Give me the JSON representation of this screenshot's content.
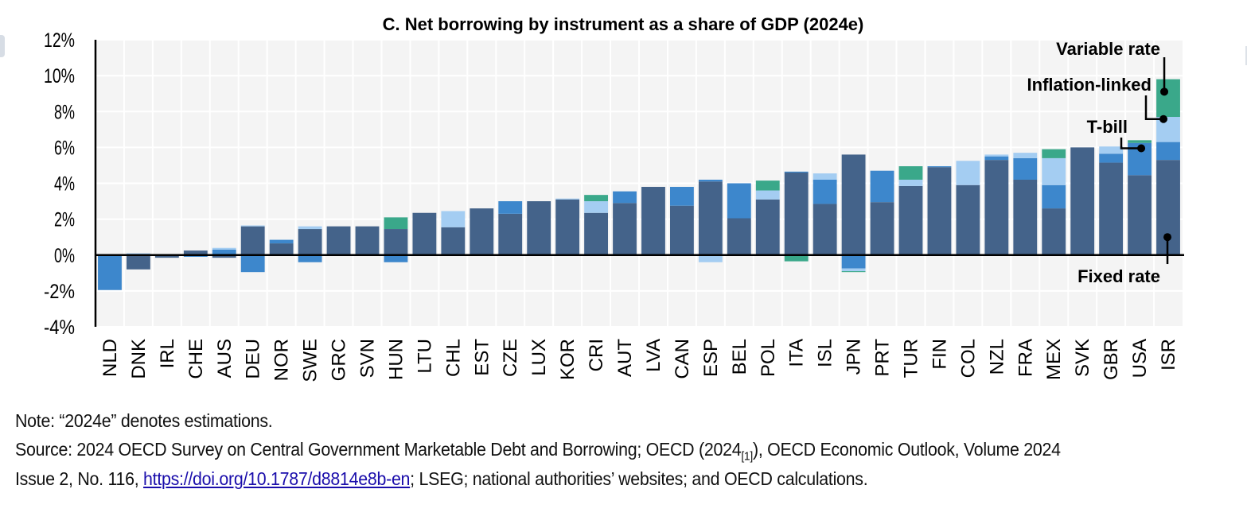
{
  "chart_data": {
    "type": "bar",
    "stacked": true,
    "title": "C. Net borrowing by instrument as a share of GDP (2024e)",
    "xlabel": "",
    "ylabel": "",
    "ylim": [
      -4,
      12
    ],
    "yticks": [
      -4,
      -2,
      0,
      2,
      4,
      6,
      8,
      10,
      12
    ],
    "ytick_labels": [
      "-4%",
      "-2%",
      "0%",
      "2%",
      "4%",
      "6%",
      "8%",
      "10%",
      "12%"
    ],
    "grid": true,
    "categories": [
      "NLD",
      "DNK",
      "IRL",
      "CHE",
      "AUS",
      "DEU",
      "NOR",
      "SWE",
      "GRC",
      "SVN",
      "HUN",
      "LTU",
      "CHL",
      "EST",
      "CZE",
      "LUX",
      "KOR",
      "CRI",
      "AUT",
      "LVA",
      "CAN",
      "ESP",
      "BEL",
      "POL",
      "ITA",
      "ISL",
      "JPN",
      "PRT",
      "TUR",
      "FIN",
      "COL",
      "NZL",
      "FRA",
      "MEX",
      "SVK",
      "GBR",
      "USA",
      "ISR"
    ],
    "series": [
      {
        "name": "Fixed rate",
        "color": "#44638a",
        "values": [
          0.0,
          -0.8,
          -0.15,
          0.25,
          -0.15,
          1.6,
          0.65,
          1.45,
          1.6,
          1.6,
          1.45,
          2.35,
          1.55,
          2.6,
          2.3,
          3.0,
          3.1,
          2.35,
          2.9,
          3.8,
          2.75,
          4.1,
          2.05,
          3.1,
          4.6,
          2.85,
          5.6,
          2.95,
          3.85,
          4.9,
          3.9,
          5.3,
          4.2,
          2.6,
          6.0,
          5.15,
          4.45,
          5.3
        ]
      },
      {
        "name": "T-bill",
        "color": "#3d87cc",
        "values": [
          -1.95,
          0.0,
          0.0,
          -0.1,
          0.3,
          -0.95,
          0.2,
          -0.4,
          0.0,
          0.0,
          -0.4,
          0.0,
          0.0,
          -0.05,
          0.7,
          0.0,
          0.0,
          0.0,
          0.65,
          0.0,
          1.05,
          0.1,
          1.95,
          0.0,
          0.05,
          1.35,
          -0.75,
          1.75,
          0.0,
          0.05,
          0.0,
          0.2,
          1.2,
          1.3,
          0.0,
          0.5,
          1.8,
          1.0
        ]
      },
      {
        "name": "Inflation-linked",
        "color": "#a4cdf2",
        "values": [
          0.0,
          0.1,
          0.0,
          0.0,
          0.1,
          0.05,
          0.0,
          0.15,
          0.0,
          0.0,
          0.0,
          0.0,
          0.9,
          0.0,
          0.0,
          0.0,
          0.05,
          0.65,
          0.0,
          0.0,
          0.0,
          -0.4,
          0.0,
          0.5,
          0.0,
          0.35,
          -0.15,
          0.0,
          0.35,
          0.0,
          1.35,
          0.1,
          0.3,
          1.5,
          0.0,
          0.4,
          0.0,
          1.4
        ]
      },
      {
        "name": "Variable rate",
        "color": "#3aa88a",
        "values": [
          0.0,
          0.0,
          0.0,
          0.0,
          0.0,
          0.0,
          0.0,
          0.0,
          0.0,
          0.0,
          0.65,
          0.0,
          0.0,
          0.0,
          0.0,
          0.0,
          0.0,
          0.35,
          0.0,
          0.0,
          0.0,
          0.0,
          0.0,
          0.55,
          -0.35,
          0.0,
          -0.05,
          0.0,
          0.75,
          0.0,
          0.0,
          0.0,
          0.0,
          0.5,
          0.0,
          0.0,
          0.15,
          2.1
        ]
      }
    ],
    "annotations": [
      {
        "text": "Variable rate",
        "points_to": "ISR",
        "series": "Variable rate"
      },
      {
        "text": "Inflation-linked",
        "points_to": "ISR",
        "series": "Inflation-linked"
      },
      {
        "text": "T-bill",
        "points_to": "USA",
        "series": "T-bill"
      },
      {
        "text": "Fixed rate",
        "points_to": "ISR",
        "series": "Fixed rate"
      }
    ],
    "legend": "inline-annotations-right"
  },
  "notes": {
    "note_line": "Note: “2024e” denotes estimations.",
    "source_line1_a": "Source: 2024 OECD Survey on Central Government Marketable Debt and Borrowing; OECD (2024",
    "source_ref": "[1]",
    "source_line1_b": "), OECD Economic Outlook, Volume 2024",
    "source_line2_a": "Issue 2, No. 116, ",
    "source_link": "https://doi.org/10.1787/d8814e8b-en",
    "source_line2_b": "; LSEG; national authorities’ websites; and OECD calculations."
  }
}
